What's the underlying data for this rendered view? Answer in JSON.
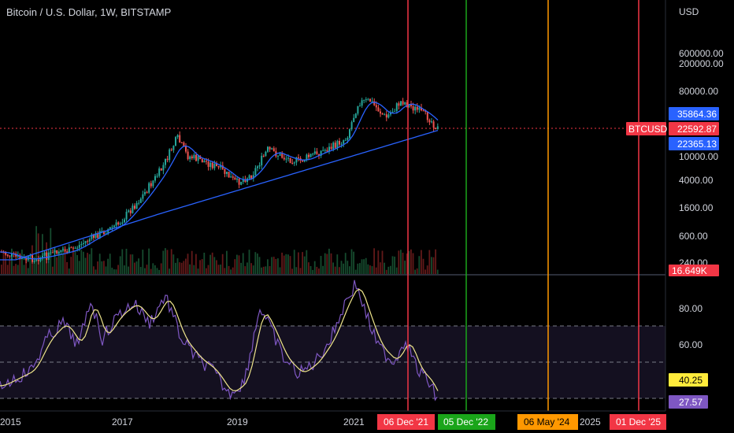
{
  "header": {
    "title": "Bitcoin / U.S. Dollar, 1W, BITSTAMP"
  },
  "price_axis": {
    "currency": "USD",
    "ticks": [
      "600000.00",
      "200000.00",
      "80000.00",
      "10000.00",
      "4000.00",
      "1600.00",
      "600.00",
      "240.00"
    ]
  },
  "price_tags": {
    "ma_fast": {
      "value": "35864.36",
      "color": "#2962ff"
    },
    "symbol": {
      "label": "BTCUSD",
      "value": "22592.87",
      "color": "#f23645"
    },
    "ma_slow": {
      "value": "22365.13",
      "color": "#2962ff"
    },
    "volume": {
      "value": "16.649K",
      "color": "#f23645"
    }
  },
  "rsi_axis": {
    "ticks": [
      "80.00",
      "60.00"
    ],
    "signal_value": "40.25",
    "rsi_value": "27.57",
    "signal_color": "#ffeb3b",
    "rsi_color": "#7e57c2"
  },
  "time_axis": {
    "years": [
      "2015",
      "2017",
      "2019",
      "2021",
      "2025"
    ]
  },
  "vertical_markers": [
    {
      "label": "06 Dec '21",
      "color": "#f23645"
    },
    {
      "label": "05 Dec '22",
      "color": "#1aa51a"
    },
    {
      "label": "06 May '24",
      "color": "#ff9800"
    },
    {
      "label": "01 Dec '25",
      "color": "#f23645"
    }
  ],
  "colors": {
    "background": "#000000",
    "up_candle": "#26a69a",
    "down_candle": "#ef5350",
    "ma_line": "#2962ff",
    "rsi_line": "#7e57c2",
    "rsi_signal": "#f0e68c",
    "rsi_band": "#1a1526"
  }
}
